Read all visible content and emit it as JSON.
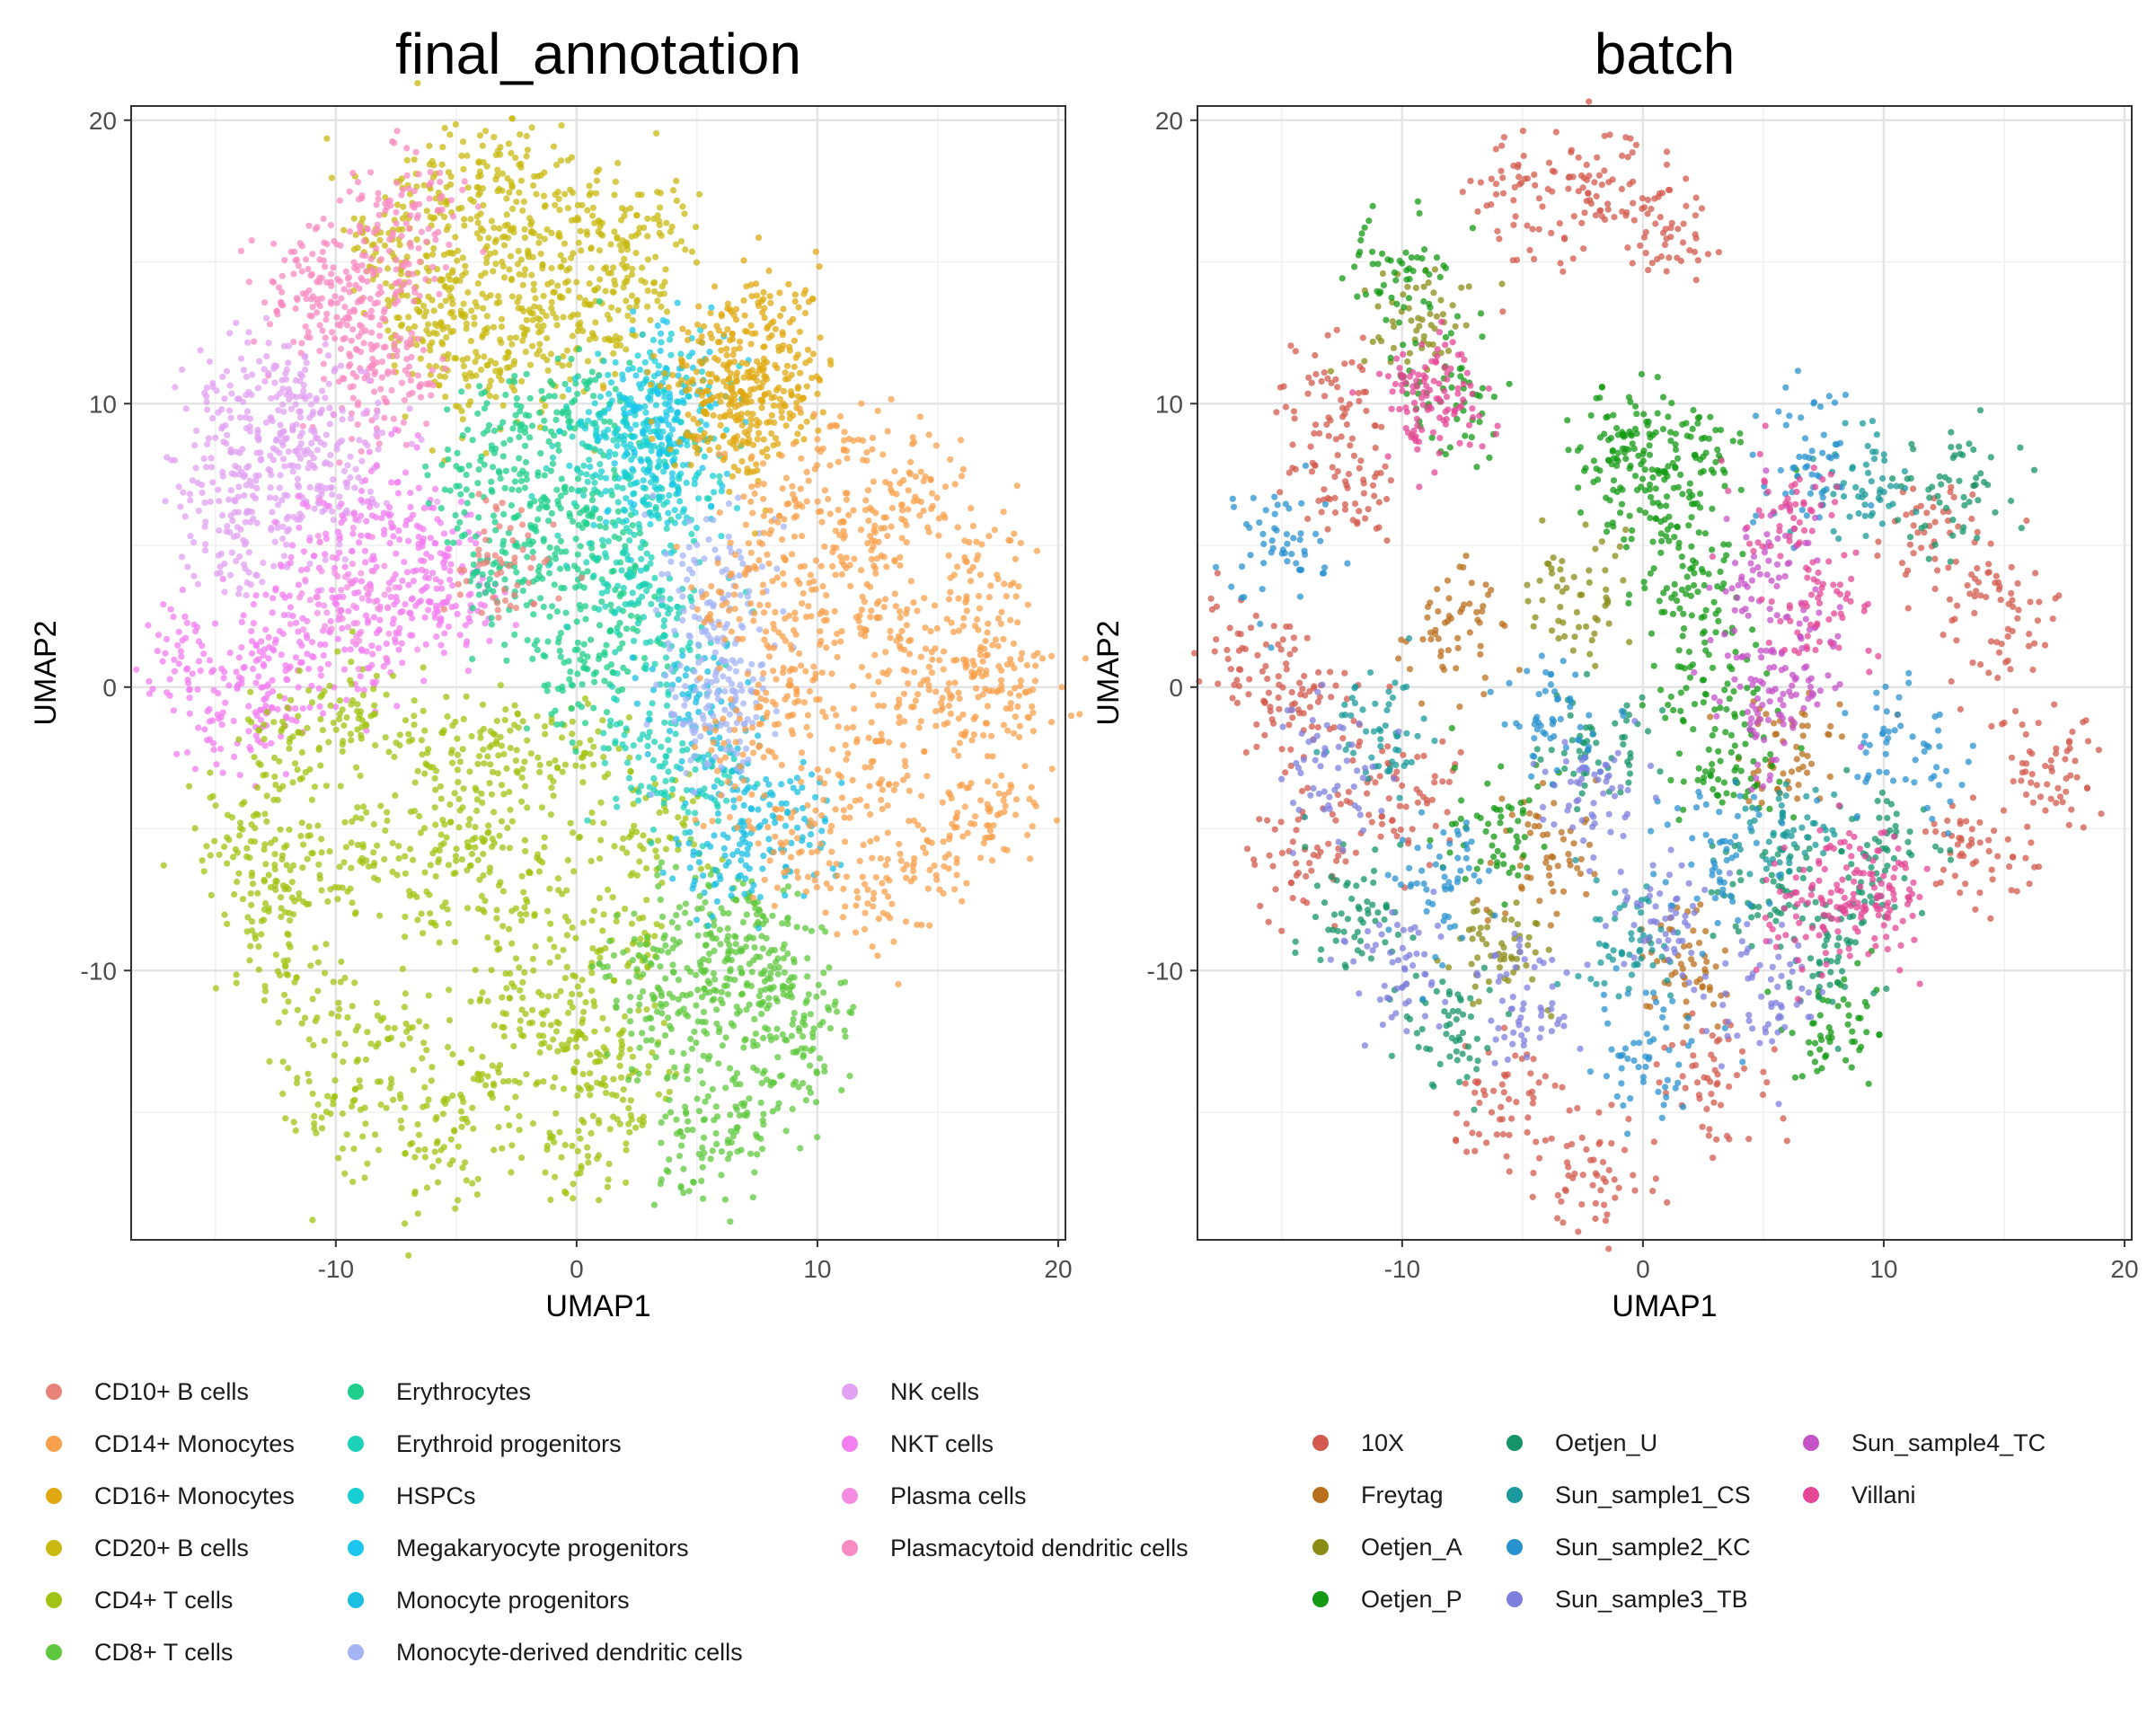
{
  "chart_data": [
    {
      "type": "scatter",
      "title": "final_annotation",
      "xlabel": "UMAP1",
      "ylabel": "UMAP2",
      "xlim": [
        -18.5,
        20.3
      ],
      "ylim": [
        -19.5,
        20.5
      ],
      "xticks": [
        -10,
        0,
        10,
        20
      ],
      "yticks": [
        -10,
        0,
        10,
        20
      ],
      "xtick_labels": [
        "-10",
        "0",
        "10",
        "20"
      ],
      "ytick_labels": [
        "-10",
        "0",
        "10",
        "20"
      ],
      "grid": true,
      "legend": {
        "position": "bottom-left",
        "columns": 3,
        "entries": [
          {
            "label": "CD10+ B cells",
            "color": "#E8837A"
          },
          {
            "label": "CD14+ Monocytes",
            "color": "#F8A04C"
          },
          {
            "label": "CD16+ Monocytes",
            "color": "#E0A912"
          },
          {
            "label": "CD20+ B cells",
            "color": "#C8BA10"
          },
          {
            "label": "CD4+ T cells",
            "color": "#A1C312"
          },
          {
            "label": "CD8+ T cells",
            "color": "#5FC83E"
          },
          {
            "label": "Erythrocytes",
            "color": "#1DCF8A"
          },
          {
            "label": "Erythroid progenitors",
            "color": "#1CD2B8"
          },
          {
            "label": "HSPCs",
            "color": "#18CFD6"
          },
          {
            "label": "Megakaryocyte progenitors",
            "color": "#1CC6EE"
          },
          {
            "label": "Monocyte progenitors",
            "color": "#1ABFE2"
          },
          {
            "label": "Monocyte-derived dendritic cells",
            "color": "#A4B4F4"
          },
          {
            "label": "NK cells",
            "color": "#E2A2F2"
          },
          {
            "label": "NKT cells",
            "color": "#F27EF0"
          },
          {
            "label": "Plasma cells",
            "color": "#F48DE2"
          },
          {
            "label": "Plasmacytoid dendritic cells",
            "color": "#F88BC2"
          }
        ]
      },
      "series": [
        {
          "name": "CD20+ B cells",
          "color": "#C8BA10",
          "points": [
            [
              -8,
              16
            ],
            [
              -6,
              17.5
            ],
            [
              -3,
              18
            ],
            [
              0,
              17
            ],
            [
              3,
              16
            ],
            [
              -5,
              14
            ],
            [
              -2,
              14
            ],
            [
              1,
              13
            ],
            [
              -6,
              12
            ],
            [
              -4,
              11
            ],
            [
              -1,
              12
            ],
            [
              2,
              15
            ],
            [
              -3,
              16
            ],
            [
              -7,
              14
            ]
          ]
        },
        {
          "name": "Plasmacytoid dendritic cells",
          "color": "#F88BC2",
          "points": [
            [
              -11.5,
              14
            ],
            [
              -10,
              14.5
            ],
            [
              -9,
              13
            ],
            [
              -8.5,
              11.5
            ],
            [
              -8,
              10.5
            ],
            [
              -7,
              15.5
            ],
            [
              -7,
              17
            ]
          ]
        },
        {
          "name": "NK cells",
          "color": "#E2A2F2",
          "points": [
            [
              -15,
              7
            ],
            [
              -14,
              10
            ],
            [
              -12,
              11
            ],
            [
              -11,
              9
            ],
            [
              -13,
              8
            ],
            [
              -14,
              5
            ],
            [
              -11,
              6
            ],
            [
              -9,
              8
            ]
          ]
        },
        {
          "name": "NKT cells",
          "color": "#F27EF0",
          "points": [
            [
              -16,
              1
            ],
            [
              -14,
              -1
            ],
            [
              -12,
              2
            ],
            [
              -10,
              4
            ],
            [
              -8,
              6
            ],
            [
              -6,
              5
            ],
            [
              -5,
              3
            ],
            [
              -9,
              1
            ],
            [
              -7,
              3
            ],
            [
              -13,
              0
            ]
          ]
        },
        {
          "name": "CD4+ T cells",
          "color": "#A1C312",
          "points": [
            [
              -14,
              -5
            ],
            [
              -12,
              -2
            ],
            [
              -9,
              -1
            ],
            [
              -6,
              -3
            ],
            [
              -3,
              -2
            ],
            [
              0,
              -3
            ],
            [
              3,
              -5
            ],
            [
              -10,
              -6
            ],
            [
              -6,
              -7
            ],
            [
              -2,
              -8
            ],
            [
              2,
              -9
            ],
            [
              -12,
              -10
            ],
            [
              -8,
              -12
            ],
            [
              -4,
              -14
            ],
            [
              0,
              -16
            ],
            [
              -2,
              -11
            ],
            [
              -10,
              -15
            ],
            [
              -6,
              -16
            ],
            [
              -4,
              -5
            ],
            [
              0,
              -12
            ],
            [
              2,
              -14
            ],
            [
              -13,
              -7
            ]
          ]
        },
        {
          "name": "CD8+ T cells",
          "color": "#5FC83E",
          "points": [
            [
              5,
              -8
            ],
            [
              7,
              -9
            ],
            [
              9,
              -11
            ],
            [
              9,
              -13
            ],
            [
              7,
              -15
            ],
            [
              5,
              -16
            ],
            [
              4,
              -12
            ],
            [
              6,
              -11
            ],
            [
              8,
              -10
            ],
            [
              3,
              -10
            ]
          ]
        },
        {
          "name": "Erythrocytes",
          "color": "#1DCF8A",
          "points": [
            [
              -4,
              8
            ],
            [
              -2,
              9
            ],
            [
              0,
              10
            ],
            [
              -1,
              6
            ],
            [
              1,
              5
            ],
            [
              -3,
              5
            ],
            [
              2,
              2
            ],
            [
              0,
              0
            ],
            [
              -2,
              3
            ]
          ]
        },
        {
          "name": "Erythroid progenitors",
          "color": "#1CD2B8",
          "points": [
            [
              1,
              8
            ],
            [
              3,
              6
            ],
            [
              2,
              4
            ],
            [
              4,
              2
            ],
            [
              3,
              -2
            ],
            [
              5,
              -3
            ]
          ]
        },
        {
          "name": "HSPCs",
          "color": "#18CFD6",
          "points": [
            [
              2,
              10
            ],
            [
              3,
              9
            ],
            [
              4,
              7
            ],
            [
              4.5,
              10
            ],
            [
              2.5,
              7.5
            ]
          ]
        },
        {
          "name": "Megakaryocyte progenitors",
          "color": "#1CC6EE",
          "points": [
            [
              4,
              11
            ],
            [
              3.5,
              8.5
            ]
          ]
        },
        {
          "name": "Monocyte progenitors",
          "color": "#1ABFE2",
          "points": [
            [
              5,
              -1
            ],
            [
              7,
              -4
            ],
            [
              9,
              -5
            ],
            [
              6,
              -6
            ]
          ]
        },
        {
          "name": "Monocyte-derived dendritic cells",
          "color": "#A4B4F4",
          "points": [
            [
              5.5,
              4
            ],
            [
              6,
              2
            ],
            [
              6.5,
              0
            ],
            [
              5.5,
              -1
            ]
          ]
        },
        {
          "name": "CD16+ Monocytes",
          "color": "#E0A912",
          "points": [
            [
              6,
              11
            ],
            [
              7,
              12
            ],
            [
              8,
              13
            ],
            [
              6.5,
              9
            ],
            [
              7.5,
              10
            ],
            [
              9,
              10
            ],
            [
              5.5,
              10
            ]
          ]
        },
        {
          "name": "CD14+ Monocytes",
          "color": "#F8A04C",
          "points": [
            [
              8,
              6
            ],
            [
              11,
              8
            ],
            [
              14,
              7
            ],
            [
              17,
              4
            ],
            [
              18,
              0
            ],
            [
              17,
              -4
            ],
            [
              15,
              -6
            ],
            [
              12,
              -7
            ],
            [
              9,
              -5
            ],
            [
              7,
              -2
            ],
            [
              7,
              3
            ],
            [
              10,
              3
            ],
            [
              13,
              2
            ],
            [
              15,
              -1
            ],
            [
              12,
              -3
            ],
            [
              9,
              0
            ],
            [
              12,
              5
            ],
            [
              16,
              1
            ]
          ]
        },
        {
          "name": "CD10+ B cells",
          "color": "#E8837A",
          "points": [
            [
              -3,
              4.5
            ]
          ]
        },
        {
          "name": "Plasma cells",
          "color": "#F48DE2",
          "points": [
            [
              -9.5,
              3
            ]
          ]
        }
      ]
    },
    {
      "type": "scatter",
      "title": "batch",
      "xlabel": "UMAP1",
      "ylabel": "UMAP2",
      "xlim": [
        -18.5,
        20.3
      ],
      "ylim": [
        -19.5,
        20.5
      ],
      "xticks": [
        -10,
        0,
        10,
        20
      ],
      "yticks": [
        -10,
        0,
        10,
        20
      ],
      "xtick_labels": [
        "-10",
        "0",
        "10",
        "20"
      ],
      "ytick_labels": [
        "-10",
        "0",
        "10",
        "20"
      ],
      "grid": true,
      "legend": {
        "position": "bottom-right",
        "columns": 3,
        "entries": [
          {
            "label": "10X",
            "color": "#D35A4E"
          },
          {
            "label": "Freytag",
            "color": "#B96F1C"
          },
          {
            "label": "Oetjen_A",
            "color": "#8A8C16"
          },
          {
            "label": "Oetjen_P",
            "color": "#139913"
          },
          {
            "label": "Oetjen_U",
            "color": "#15946A"
          },
          {
            "label": "Sun_sample1_CS",
            "color": "#1A9A9A"
          },
          {
            "label": "Sun_sample2_KC",
            "color": "#2892CF"
          },
          {
            "label": "Sun_sample3_TB",
            "color": "#7F7FDD"
          },
          {
            "label": "Sun_sample4_TC",
            "color": "#C652C8"
          },
          {
            "label": "Villani",
            "color": "#E34795"
          }
        ]
      },
      "series": [
        {
          "name": "10X",
          "color": "#D35A4E",
          "points": [
            [
              -16,
              1
            ],
            [
              -14,
              -1
            ],
            [
              -13,
              10
            ],
            [
              -12,
              7
            ],
            [
              -5,
              17
            ],
            [
              -2,
              18
            ],
            [
              1,
              16
            ],
            [
              12,
              5
            ],
            [
              15,
              2
            ],
            [
              17,
              -3
            ],
            [
              14,
              -6
            ],
            [
              -10,
              -4
            ],
            [
              -6,
              -15
            ],
            [
              -2,
              -17
            ],
            [
              3,
              -14
            ],
            [
              -14,
              -6
            ]
          ]
        },
        {
          "name": "Freytag",
          "color": "#B96F1C",
          "points": [
            [
              -8,
              2
            ],
            [
              -4,
              -6
            ],
            [
              6,
              -2
            ],
            [
              2,
              -10
            ]
          ]
        },
        {
          "name": "Oetjen_A",
          "color": "#8A8C16",
          "points": [
            [
              -9.5,
              13
            ],
            [
              -3,
              3
            ],
            [
              -6,
              -9
            ]
          ]
        },
        {
          "name": "Oetjen_P",
          "color": "#139913",
          "points": [
            [
              -10,
              14.5
            ],
            [
              -8,
              10.5
            ],
            [
              0,
              9
            ],
            [
              1,
              6
            ],
            [
              2,
              3
            ],
            [
              3,
              0
            ],
            [
              -1,
              8
            ],
            [
              2,
              8
            ],
            [
              4,
              -3
            ],
            [
              -6,
              -5
            ],
            [
              8,
              -12
            ]
          ]
        },
        {
          "name": "Oetjen_U",
          "color": "#15946A",
          "points": [
            [
              -12,
              -8
            ],
            [
              -8,
              -12
            ],
            [
              5,
              -7
            ],
            [
              8,
              -9
            ],
            [
              -2,
              -2
            ],
            [
              10,
              -6
            ],
            [
              13,
              7
            ]
          ]
        },
        {
          "name": "Sun_sample1_CS",
          "color": "#1A9A9A",
          "points": [
            [
              -11,
              -2
            ],
            [
              -1,
              -9
            ],
            [
              6,
              -5
            ],
            [
              9,
              7
            ]
          ]
        },
        {
          "name": "Sun_sample2_KC",
          "color": "#2892CF",
          "points": [
            [
              -15,
              5
            ],
            [
              -4,
              -1
            ],
            [
              3,
              -6
            ],
            [
              -8,
              -7
            ],
            [
              0,
              -13
            ],
            [
              7,
              8
            ],
            [
              11,
              -2
            ]
          ]
        },
        {
          "name": "Sun_sample3_TB",
          "color": "#7F7FDD",
          "points": [
            [
              -13,
              -3
            ],
            [
              -2,
              -4
            ],
            [
              1,
              -8
            ],
            [
              -5,
              -11
            ],
            [
              5,
              -11
            ],
            [
              -10,
              -10
            ]
          ]
        },
        {
          "name": "Sun_sample4_TC",
          "color": "#C652C8",
          "points": [
            [
              5,
              4
            ],
            [
              6,
              1
            ],
            [
              5.5,
              -1
            ]
          ]
        },
        {
          "name": "Villani",
          "color": "#E34795",
          "points": [
            [
              -9,
              10.2
            ],
            [
              -8.5,
              10
            ],
            [
              6,
              6
            ],
            [
              7.5,
              3
            ],
            [
              9,
              -7
            ],
            [
              7,
              -8
            ],
            [
              10,
              -7.5
            ]
          ]
        }
      ]
    }
  ]
}
